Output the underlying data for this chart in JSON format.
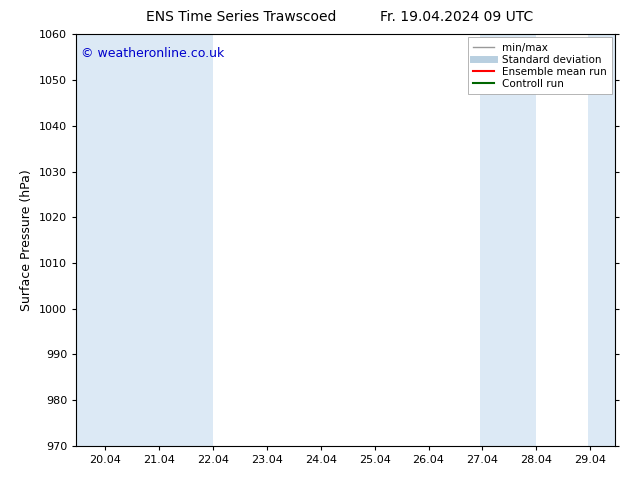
{
  "title_left": "ENS Time Series Trawscoed",
  "title_right": "Fr. 19.04.2024 09 UTC",
  "ylabel": "Surface Pressure (hPa)",
  "ylim": [
    970,
    1060
  ],
  "yticks": [
    970,
    980,
    990,
    1000,
    1010,
    1020,
    1030,
    1040,
    1050,
    1060
  ],
  "xlim": [
    19.5,
    29.5
  ],
  "xticks": [
    20.04,
    21.04,
    22.04,
    23.04,
    24.04,
    25.04,
    26.04,
    27.04,
    28.04,
    29.04
  ],
  "xticklabels": [
    "20.04",
    "21.04",
    "22.04",
    "23.04",
    "24.04",
    "25.04",
    "26.04",
    "27.04",
    "28.04",
    "29.04"
  ],
  "shaded_bands": [
    {
      "x_start": 19.5,
      "x_end": 20.54
    },
    {
      "x_start": 20.54,
      "x_end": 21.0
    },
    {
      "x_start": 21.0,
      "x_end": 22.04
    },
    {
      "x_start": 27.0,
      "x_end": 27.54
    },
    {
      "x_start": 27.54,
      "x_end": 28.04
    },
    {
      "x_start": 29.0,
      "x_end": 29.5
    }
  ],
  "band_color": "#dce9f5",
  "background_color": "#ffffff",
  "plot_bg_color": "#ffffff",
  "watermark": "© weatheronline.co.uk",
  "watermark_color": "#0000cc",
  "legend_items": [
    {
      "label": "min/max",
      "color": "#999999",
      "lw": 1.0,
      "style": "solid"
    },
    {
      "label": "Standard deviation",
      "color": "#b8cfe0",
      "lw": 5.0,
      "style": "solid"
    },
    {
      "label": "Ensemble mean run",
      "color": "#ff0000",
      "lw": 1.5,
      "style": "solid"
    },
    {
      "label": "Controll run",
      "color": "#006600",
      "lw": 1.5,
      "style": "solid"
    }
  ],
  "font_size_title": 10,
  "font_size_legend": 7.5,
  "font_size_ticks": 8,
  "font_size_ylabel": 9,
  "font_size_watermark": 9
}
